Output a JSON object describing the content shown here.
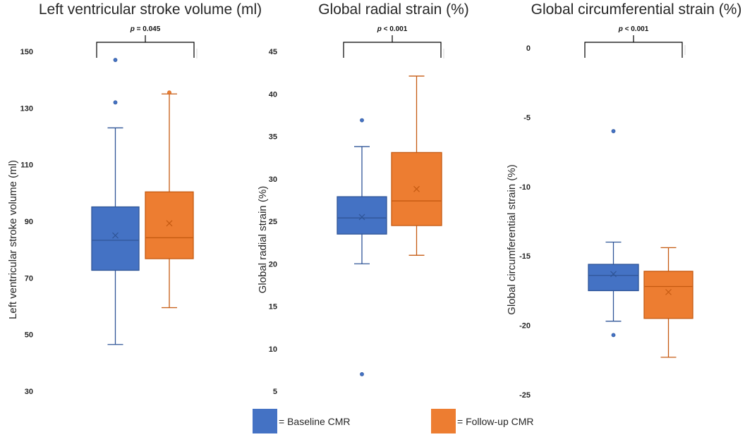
{
  "colors": {
    "baseline_fill": "#4472C4",
    "baseline_line": "#2F5597",
    "followup_fill": "#ED7D31",
    "followup_line": "#C55A11",
    "text": "#262626",
    "axis": "#d9d9d9",
    "bracket": "#000000"
  },
  "legend": {
    "items": [
      {
        "label": "= Baseline CMR",
        "color": "#4472C4"
      },
      {
        "label": "= Follow-up CMR",
        "color": "#ED7D31"
      }
    ]
  },
  "chart_data": [
    {
      "type": "box",
      "title": "Left ventricular stroke volume (ml)",
      "ylabel": "Left ventricular stroke volume (ml)",
      "ylim": [
        30,
        150
      ],
      "yticks": [
        30,
        50,
        70,
        90,
        110,
        130,
        150
      ],
      "significance": {
        "p_prefix": "p",
        "p_text": " = 0.045"
      },
      "series": [
        {
          "name": "Baseline CMR",
          "whisker_low": 46.5,
          "q1": 72.7,
          "median": 83.3,
          "q3": 95.1,
          "whisker_high": 123,
          "mean": 85,
          "outliers": [
            132,
            147
          ]
        },
        {
          "name": "Follow-up CMR",
          "whisker_low": 59.5,
          "q1": 76.8,
          "median": 84.2,
          "q3": 100.4,
          "whisker_high": 135,
          "mean": 89.3,
          "outliers": [
            135.5
          ]
        }
      ]
    },
    {
      "type": "box",
      "title": "Global radial strain (%)",
      "ylabel": "Global radial strain (%)",
      "ylim": [
        5,
        45
      ],
      "yticks": [
        5,
        10,
        15,
        20,
        25,
        30,
        35,
        40,
        45
      ],
      "significance": {
        "p_prefix": "p",
        "p_text": " < 0.001"
      },
      "series": [
        {
          "name": "Baseline CMR",
          "whisker_low": 20,
          "q1": 23.5,
          "median": 25.4,
          "q3": 27.9,
          "whisker_high": 33.8,
          "mean": 25.5,
          "outliers": [
            36.9,
            7
          ]
        },
        {
          "name": "Follow-up CMR",
          "whisker_low": 21,
          "q1": 24.5,
          "median": 27.4,
          "q3": 33.1,
          "whisker_high": 42.1,
          "mean": 28.8,
          "outliers": []
        }
      ]
    },
    {
      "type": "box",
      "title": "Global circumferential strain (%)",
      "ylabel": "Global circumferential strain (%)",
      "ylim": [
        -25,
        0
      ],
      "yticks": [
        -25,
        -20,
        -15,
        -10,
        -5,
        0
      ],
      "significance": {
        "p_prefix": "p",
        "p_text": " < 0.001"
      },
      "series": [
        {
          "name": "Baseline CMR",
          "whisker_low": -19.7,
          "q1": -17.5,
          "median": -16.4,
          "q3": -15.6,
          "whisker_high": -14,
          "mean": -16.3,
          "outliers": [
            -6,
            -20.7
          ]
        },
        {
          "name": "Follow-up CMR",
          "whisker_low": -22.3,
          "q1": -19.5,
          "median": -17.2,
          "q3": -16.1,
          "whisker_high": -14.4,
          "mean": -17.6,
          "outliers": []
        }
      ]
    }
  ]
}
